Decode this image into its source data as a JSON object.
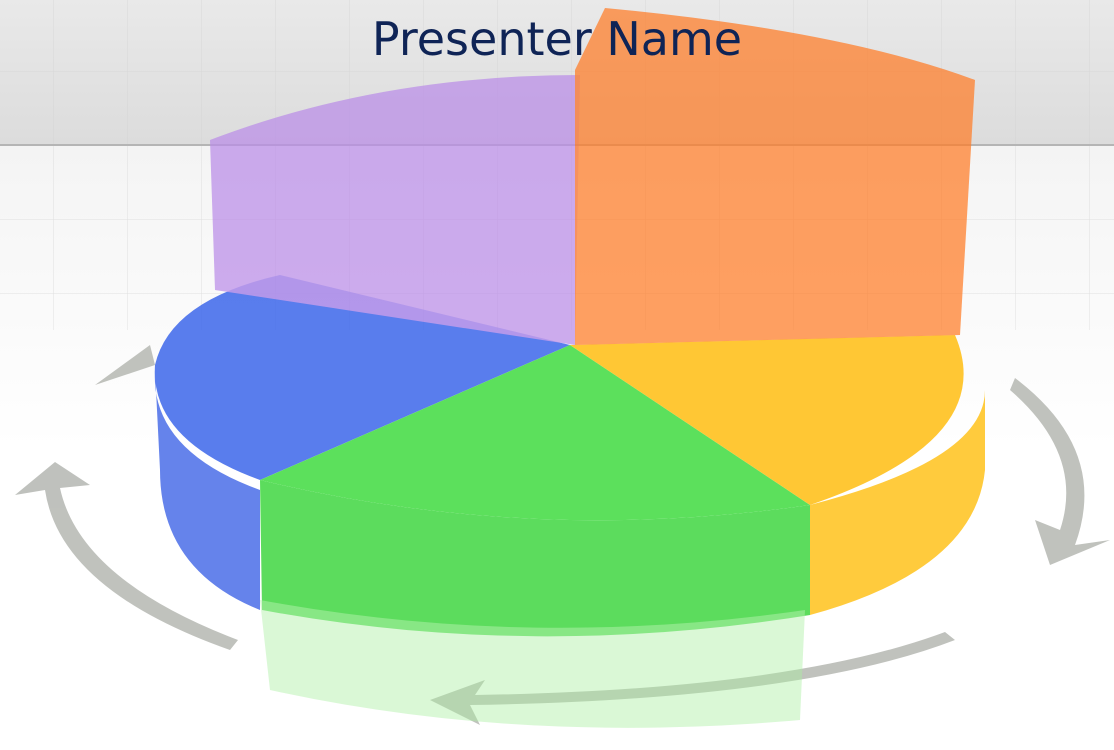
{
  "header": {
    "title": "Presenter Name"
  }
}
